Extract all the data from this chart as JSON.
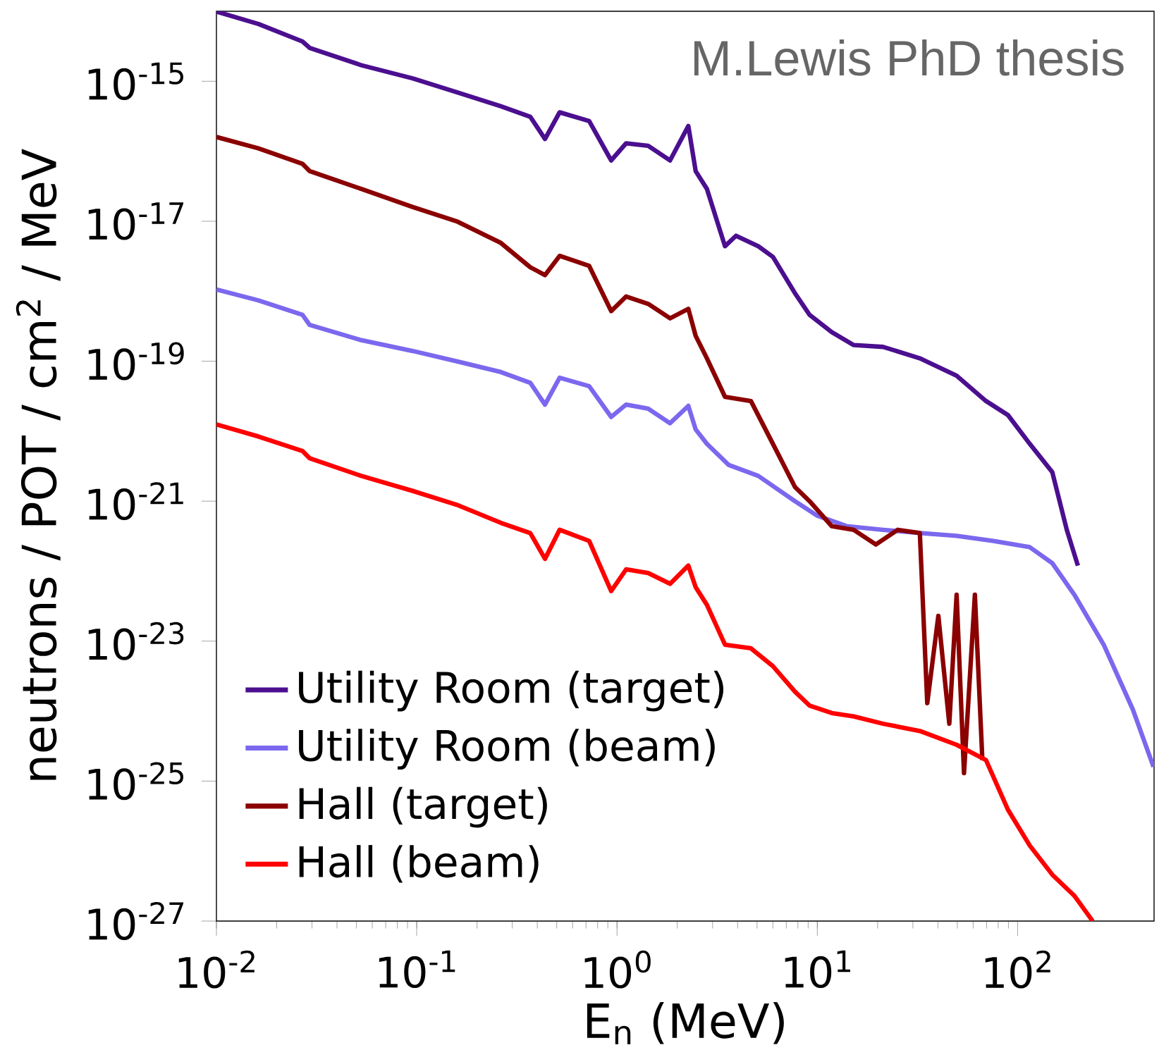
{
  "chart_data": {
    "type": "line",
    "xlabel": "E$_{n}$ (MeV)",
    "ylabel": "neutrons / POT / cm$^{2}$ / MeV",
    "log": "xy",
    "legend": "bottom left",
    "marker": "none",
    "line_style": "solid",
    "grid": false,
    "annotations": [
      "M.Lewis PhD thesis"
    ],
    "xlim": [
      0.01,
      480
    ],
    "ylim": [
      1e-27,
      1e-14
    ],
    "xticks": [
      {
        "value": 0.01,
        "label": "10$^{-2}$"
      },
      {
        "value": 0.1,
        "label": "10$^{-1}$"
      },
      {
        "value": 1,
        "label": "10$^{0}$"
      },
      {
        "value": 10,
        "label": "10$^{1}$"
      },
      {
        "value": 100,
        "label": "10$^{2}$"
      }
    ],
    "yticks": [
      {
        "value": 1e-27,
        "label": "10$^{-27}$"
      },
      {
        "value": 1e-25,
        "label": "10$^{-25}$"
      },
      {
        "value": 1e-23,
        "label": "10$^{-23}$"
      },
      {
        "value": 1e-21,
        "label": "10$^{-21}$"
      },
      {
        "value": 1e-19,
        "label": "10$^{-19}$"
      },
      {
        "value": 1e-17,
        "label": "10$^{-17}$"
      },
      {
        "value": 1e-15,
        "label": "10$^{-15}$"
      }
    ],
    "series": [
      {
        "name": "Utility Room (target)",
        "color": "#4b0f8f",
        "x": [
          0.01,
          0.0162,
          0.0269,
          0.0292,
          0.0528,
          0.0955,
          0.158,
          0.263,
          0.369,
          0.437,
          0.517,
          0.726,
          0.935,
          1.11,
          1.43,
          1.84,
          2.27,
          2.47,
          2.81,
          3.46,
          3.93,
          5.07,
          6.0,
          7.73,
          9.15,
          11.8,
          15.2,
          21.3,
          32.5,
          49.6,
          69.5,
          89.5,
          115,
          149,
          176,
          200
        ],
        "values": [
          9.9e-15,
          6.6e-15,
          3.7e-15,
          3e-15,
          1.7e-15,
          1.1e-15,
          7e-16,
          4.4e-16,
          3.1e-16,
          1.5e-16,
          3.6e-16,
          2.7e-16,
          7.4e-17,
          1.3e-16,
          1.2e-16,
          7.4e-17,
          2.3e-16,
          5.2e-17,
          2.9e-17,
          4.4e-18,
          6.2e-18,
          4.4e-18,
          3.1e-18,
          9.4e-19,
          4.6e-19,
          2.6e-19,
          1.7e-19,
          1.6e-19,
          1.1e-19,
          6.2e-20,
          2.7e-20,
          1.7e-20,
          6.6e-21,
          2.6e-21,
          3.9e-22,
          1.2e-22
        ]
      },
      {
        "name": "Utility Room (beam)",
        "color": "#7b68ee",
        "x": [
          0.01,
          0.0162,
          0.0269,
          0.0292,
          0.0528,
          0.0955,
          0.158,
          0.263,
          0.369,
          0.437,
          0.517,
          0.726,
          0.935,
          1.11,
          1.43,
          1.84,
          2.27,
          2.47,
          2.81,
          3.61,
          5.07,
          7.73,
          10.0,
          14.0,
          21.3,
          32.5,
          49.6,
          75.7,
          115,
          149,
          192,
          269,
          376,
          477
        ],
        "values": [
          1.06e-18,
          7.4e-19,
          4.6e-19,
          3.3e-19,
          2e-19,
          1.4e-19,
          1e-19,
          7e-20,
          4.9e-20,
          2.4e-20,
          5.8e-20,
          4.4e-20,
          1.6e-20,
          2.4e-20,
          2.1e-20,
          1.3e-20,
          2.3e-20,
          1.06e-20,
          6.6e-21,
          3.3e-21,
          2.3e-21,
          1e-21,
          6.2e-22,
          4.4e-22,
          3.9e-22,
          3.5e-22,
          3.2e-22,
          2.7e-22,
          2.2e-22,
          1.3e-22,
          4.6e-23,
          8.9e-24,
          1.06e-24,
          1.6e-25
        ]
      },
      {
        "name": "Hall (target)",
        "color": "#8b0000",
        "x": [
          0.01,
          0.0162,
          0.0269,
          0.0292,
          0.0528,
          0.0955,
          0.158,
          0.263,
          0.369,
          0.437,
          0.517,
          0.726,
          0.935,
          1.11,
          1.43,
          1.84,
          2.27,
          2.47,
          2.81,
          3.46,
          4.66,
          6.0,
          7.73,
          9.15,
          11.8,
          15.2,
          19.6,
          25.2,
          32.5,
          35.4,
          40.2,
          45.6,
          49.6,
          54.0,
          61.2,
          66.7
        ],
        "values": [
          1.6e-16,
          1.1e-16,
          6.6e-17,
          5.2e-17,
          2.9e-17,
          1.6e-17,
          1e-17,
          4.9e-18,
          2.2e-18,
          1.7e-18,
          3.2e-18,
          2.3e-18,
          5.2e-19,
          8.4e-19,
          6.6e-19,
          4.1e-19,
          5.6e-19,
          2.3e-19,
          1.1e-19,
          3.1e-20,
          2.7e-20,
          6.6e-21,
          1.6e-21,
          1e-21,
          4.4e-22,
          3.9e-22,
          2.4e-22,
          3.9e-22,
          3.5e-22,
          1.3e-24,
          2.3e-23,
          6.6e-25,
          4.6e-23,
          1.3e-25,
          4.6e-23,
          2e-25
        ]
      },
      {
        "name": "Hall (beam)",
        "color": "#ff0000",
        "x": [
          0.01,
          0.0162,
          0.0269,
          0.0292,
          0.0528,
          0.0955,
          0.158,
          0.263,
          0.369,
          0.437,
          0.517,
          0.726,
          0.935,
          1.11,
          1.43,
          1.84,
          2.27,
          2.47,
          2.81,
          3.46,
          4.66,
          6.0,
          7.73,
          9.15,
          11.8,
          15.2,
          21.3,
          32.5,
          49.6,
          69.5,
          89.5,
          115,
          149,
          192,
          237
        ],
        "values": [
          1.25e-20,
          8.4e-21,
          5.2e-21,
          4.1e-21,
          2.3e-21,
          1.4e-21,
          8.9e-22,
          4.9e-22,
          3.5e-22,
          1.5e-22,
          3.9e-22,
          2.7e-22,
          5.2e-23,
          1.06e-22,
          9.4e-23,
          6.6e-23,
          1.2e-22,
          5.9e-23,
          3.3e-23,
          8.9e-24,
          7.9e-24,
          4.4e-24,
          1.9e-24,
          1.2e-24,
          9.4e-25,
          8.4e-25,
          6.6e-25,
          5.2e-25,
          3.3e-25,
          2e-25,
          3.9e-26,
          1.2e-26,
          4.6e-27,
          2.3e-27,
          1e-27
        ]
      }
    ]
  }
}
